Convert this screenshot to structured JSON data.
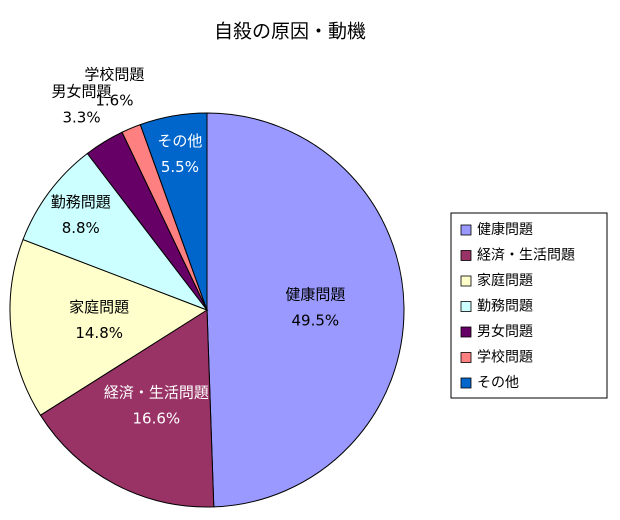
{
  "chart_data": {
    "type": "pie",
    "title": "自殺の原因・動機",
    "categories": [
      "健康問題",
      "経済・生活問題",
      "家庭問題",
      "勤務問題",
      "男女問題",
      "学校問題",
      "その他"
    ],
    "values": [
      49.5,
      16.6,
      14.8,
      8.8,
      3.3,
      1.6,
      5.5
    ],
    "value_labels": [
      "49.5%",
      "16.6%",
      "14.8%",
      "8.8%",
      "3.3%",
      "1.6%",
      "5.5%"
    ],
    "colors": [
      "#9999ff",
      "#993366",
      "#ffffcc",
      "#ccffff",
      "#660066",
      "#ff8080",
      "#0066cc"
    ],
    "legend": "right"
  }
}
